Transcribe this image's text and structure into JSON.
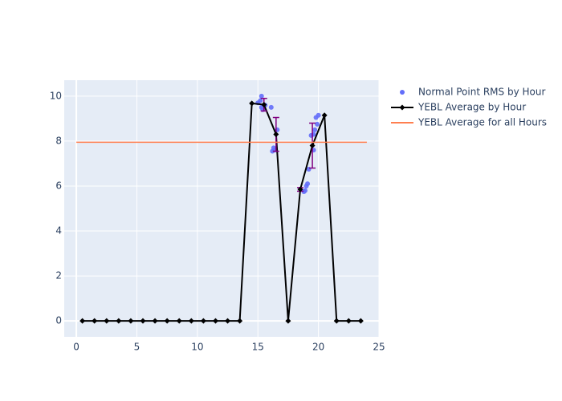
{
  "chart_data": {
    "type": "scatter-line",
    "xlim": [
      -1,
      25
    ],
    "xticks": [
      0,
      5,
      10,
      15,
      20,
      25
    ],
    "ylim": [
      -0.71,
      10.71
    ],
    "yticks": [
      0,
      2,
      4,
      6,
      8,
      10
    ],
    "grid": true,
    "legend": "right",
    "series": [
      {
        "name": "Normal Point RMS by Hour",
        "type": "scatter",
        "color": "#636efa",
        "x": [
          15.0,
          15.2,
          15.3,
          15.4,
          15.3,
          15.6,
          16.1,
          16.2,
          16.3,
          16.6,
          16.4,
          18.8,
          18.9,
          19.0,
          19.1,
          19.2,
          19.4,
          19.6,
          19.6,
          19.8,
          19.9,
          20.0,
          19.7
        ],
        "values": [
          9.7,
          9.8,
          10.0,
          9.4,
          9.5,
          9.6,
          9.5,
          7.55,
          7.7,
          8.5,
          7.6,
          5.75,
          5.8,
          6.0,
          6.1,
          6.75,
          8.25,
          8.3,
          7.6,
          9.05,
          8.75,
          9.15,
          8.5
        ]
      },
      {
        "name": "YEBL Average by Hour",
        "type": "line",
        "color": "#000000",
        "error_color": "#800080",
        "x": [
          0.5,
          1.5,
          2.5,
          3.5,
          4.5,
          5.5,
          6.5,
          7.5,
          8.5,
          9.5,
          10.5,
          11.5,
          12.5,
          13.5,
          14.5,
          15.5,
          16.5,
          17.5,
          18.5,
          19.5,
          20.5,
          21.5,
          22.5,
          23.5
        ],
        "values": [
          0,
          0,
          0,
          0,
          0,
          0,
          0,
          0,
          0,
          0,
          0,
          0,
          0,
          0,
          9.68,
          9.62,
          8.3,
          0,
          5.85,
          7.8,
          9.15,
          0,
          0,
          0
        ],
        "errors": [
          null,
          null,
          null,
          null,
          null,
          null,
          null,
          null,
          null,
          null,
          null,
          null,
          null,
          null,
          null,
          0.28,
          0.75,
          null,
          0.08,
          1.0,
          null,
          null,
          null,
          null
        ]
      },
      {
        "name": "YEBL Average for all Hours",
        "type": "hline",
        "color": "#ff7f50",
        "x": [
          0,
          24
        ],
        "values": [
          7.95,
          7.95
        ]
      }
    ]
  }
}
